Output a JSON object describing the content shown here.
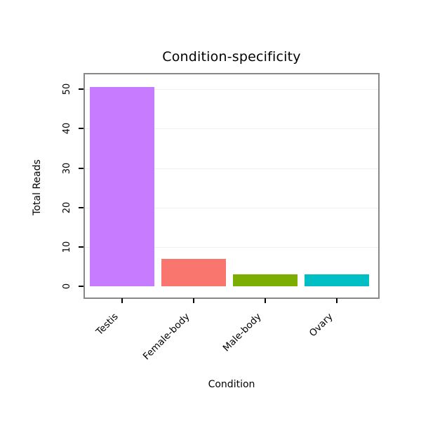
{
  "chart_data": {
    "type": "bar",
    "title": "Condition-specificity",
    "xlabel": "Condition",
    "ylabel": "Total Reads",
    "categories": [
      "Testis",
      "Female-body",
      "Male-body",
      "Ovary"
    ],
    "values": [
      50.5,
      7,
      3,
      3
    ],
    "colors": [
      "#C77CFF",
      "#F8766D",
      "#7CAE00",
      "#00BFC4"
    ],
    "yticks": [
      0,
      10,
      20,
      30,
      40,
      50
    ],
    "ylim": [
      0,
      52
    ],
    "grid": "faint horizontal gridlines at y ticks",
    "grid_color": "#f0f0f0",
    "panel_border_color": "#888888",
    "legend": "none",
    "x_tick_label_rotation_deg": 45,
    "y_tick_label_rotation_deg": 90
  }
}
